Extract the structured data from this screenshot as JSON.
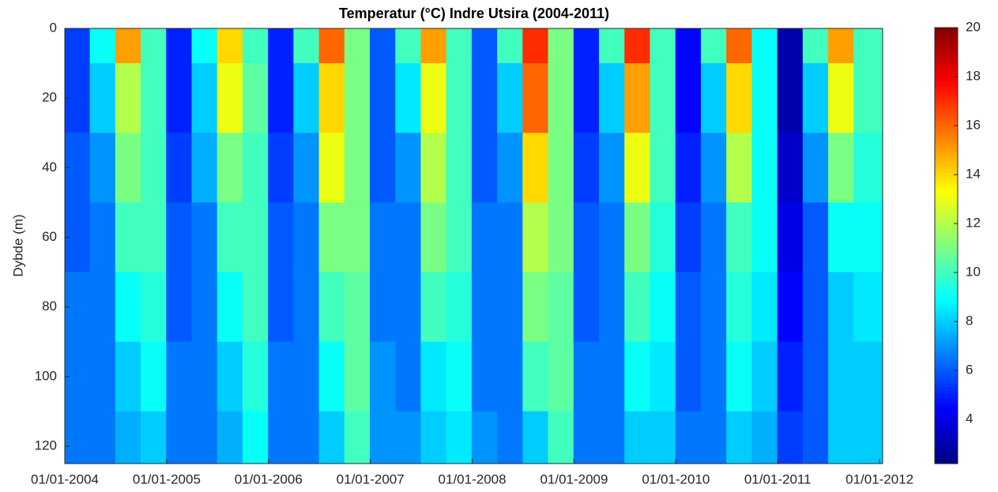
{
  "chart_data": {
    "type": "contourf",
    "title": "Temperatur (°C) Indre Utsira (2004-2011)",
    "y_label": "Dybde (m)",
    "colormap": "jet",
    "x": [
      2004.12,
      2004.37,
      2004.62,
      2004.87,
      2005.12,
      2005.37,
      2005.62,
      2005.87,
      2006.12,
      2006.37,
      2006.62,
      2006.87,
      2007.12,
      2007.37,
      2007.62,
      2007.87,
      2008.12,
      2008.37,
      2008.62,
      2008.87,
      2009.12,
      2009.37,
      2009.62,
      2009.87,
      2010.12,
      2010.37,
      2010.62,
      2010.87,
      2011.12,
      2011.37,
      2011.62,
      2011.87
    ],
    "y": [
      0,
      20,
      40,
      60,
      80,
      100,
      120
    ],
    "z": [
      [
        5.5,
        5.5,
        6,
        6,
        6.5,
        6.5,
        6.5
      ],
      [
        9,
        8,
        7,
        6.5,
        6.5,
        6.5,
        6.5
      ],
      [
        15,
        12,
        11,
        10,
        9,
        8,
        7.5
      ],
      [
        10,
        10,
        10,
        10,
        9.5,
        9,
        8
      ],
      [
        5,
        5,
        5.5,
        6,
        6,
        6.5,
        6.5
      ],
      [
        9,
        8,
        7.5,
        6.5,
        6.5,
        6.5,
        6.5
      ],
      [
        14,
        13,
        11,
        10,
        9,
        8,
        7.5
      ],
      [
        10,
        10.5,
        10,
        10,
        10,
        9.5,
        9
      ],
      [
        5,
        5,
        5.5,
        6,
        6,
        6.5,
        6.5
      ],
      [
        10,
        8,
        7,
        6.5,
        6.5,
        6.5,
        6.5
      ],
      [
        16,
        14,
        13,
        11,
        10,
        9,
        8
      ],
      [
        11,
        11,
        11,
        11,
        10.5,
        10.5,
        10
      ],
      [
        6,
        6,
        6,
        6.5,
        6.5,
        7,
        7
      ],
      [
        10,
        8.5,
        7,
        6.5,
        6.5,
        6.5,
        7
      ],
      [
        15,
        13,
        12,
        11,
        10,
        8.5,
        8
      ],
      [
        10,
        10,
        10,
        10,
        9.5,
        9,
        8.5
      ],
      [
        6,
        6,
        6,
        6.5,
        6.5,
        6.5,
        7
      ],
      [
        10,
        8,
        7,
        6.5,
        6.5,
        6.5,
        6.5
      ],
      [
        17,
        16,
        14,
        12,
        11,
        10,
        8
      ],
      [
        11,
        11,
        11,
        11,
        10.5,
        10.5,
        10
      ],
      [
        5,
        5,
        5.5,
        6,
        6,
        6.5,
        6.5
      ],
      [
        10,
        8,
        7,
        6.5,
        6.5,
        6.5,
        6.5
      ],
      [
        17,
        15,
        13,
        11,
        10,
        9,
        8
      ],
      [
        10,
        10,
        10,
        9.5,
        9,
        8.5,
        8
      ],
      [
        4.5,
        4.5,
        5,
        5.5,
        6,
        6,
        6.5
      ],
      [
        10,
        8,
        7,
        6.5,
        6.5,
        6.5,
        6.5
      ],
      [
        16,
        14,
        12,
        10,
        9.5,
        9,
        8
      ],
      [
        9,
        9,
        9,
        9,
        8.5,
        8,
        7.5
      ],
      [
        3,
        3,
        3.5,
        4,
        4.5,
        5,
        5.5
      ],
      [
        10,
        8,
        7,
        6,
        6,
        6,
        6
      ],
      [
        15,
        13,
        11,
        9,
        8,
        8,
        8
      ],
      [
        10,
        10,
        9.5,
        9,
        8.5,
        8,
        8
      ]
    ],
    "xlim": [
      2004,
      2012.03
    ],
    "xticks": [
      {
        "value": 2004,
        "label": "01/01-2004"
      },
      {
        "value": 2005,
        "label": "01/01-2005"
      },
      {
        "value": 2006,
        "label": "01/01-2006"
      },
      {
        "value": 2007,
        "label": "01/01-2007"
      },
      {
        "value": 2008,
        "label": "01/01-2008"
      },
      {
        "value": 2009,
        "label": "01/01-2009"
      },
      {
        "value": 2010,
        "label": "01/01-2010"
      },
      {
        "value": 2011,
        "label": "01/01-2011"
      },
      {
        "value": 2012,
        "label": "01/01-2012"
      }
    ],
    "ylim": [
      0,
      125
    ],
    "y_reversed": true,
    "yticks": [
      0,
      20,
      40,
      60,
      80,
      100,
      120
    ],
    "clim": [
      2.2,
      20
    ],
    "cticks": [
      4,
      6,
      8,
      10,
      12,
      14,
      16,
      18,
      20
    ]
  }
}
